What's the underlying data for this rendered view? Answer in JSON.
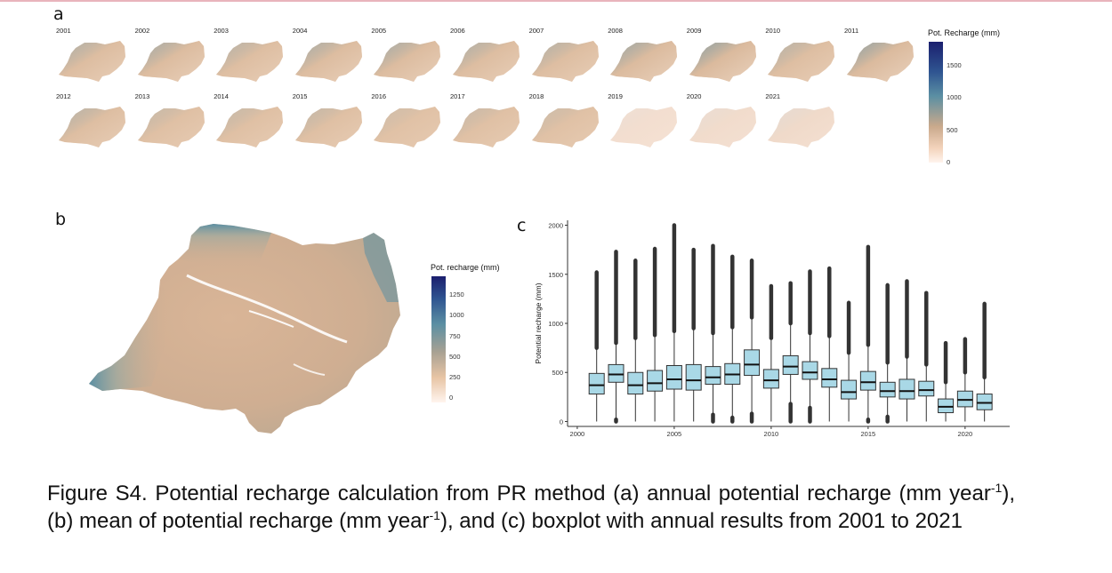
{
  "figure": {
    "panel_a": {
      "letter": "a",
      "years_row1": [
        "2001",
        "2002",
        "2003",
        "2004",
        "2005",
        "2006",
        "2007",
        "2008",
        "2009",
        "2010",
        "2011"
      ],
      "years_row2": [
        "2012",
        "2013",
        "2014",
        "2015",
        "2016",
        "2017",
        "2018",
        "2019",
        "2020",
        "2021"
      ],
      "year_intensity": [
        0.45,
        0.5,
        0.4,
        0.48,
        0.5,
        0.45,
        0.42,
        0.55,
        0.62,
        0.4,
        0.6,
        0.4,
        0.3,
        0.3,
        0.32,
        0.22,
        0.28,
        0.25,
        0.08,
        0.12,
        0.15
      ],
      "legend": {
        "title": "Pot. Recharge (mm)",
        "ticks": [
          "1500",
          "1000",
          "500",
          "0"
        ]
      }
    },
    "panel_b": {
      "letter": "b",
      "legend": {
        "title": "Pot. recharge (mm)",
        "ticks": [
          "1250",
          "1000",
          "750",
          "500",
          "250",
          "0"
        ]
      }
    },
    "panel_c": {
      "letter": "c"
    },
    "colors": {
      "high": "#1b1f6e",
      "mid": "#5b8fa3",
      "low": "#e8c4a2",
      "zero": "#fff4ee",
      "box_fill": "#a9d8e6"
    }
  },
  "chart_data": {
    "type": "boxplot",
    "ylabel": "Potential recharge (mm)",
    "xlabel": "",
    "xlim": [
      1999.5,
      2022.3
    ],
    "ylim": [
      -50,
      2050
    ],
    "x_ticks": [
      2000,
      2005,
      2010,
      2015,
      2020
    ],
    "y_ticks": [
      0,
      500,
      1000,
      1500,
      2000
    ],
    "series": [
      {
        "year": 2001,
        "min": 0,
        "q1": 280,
        "median": 370,
        "q3": 490,
        "max": 750,
        "outlier_high": 1520,
        "outlier_low": null
      },
      {
        "year": 2002,
        "min": 20,
        "q1": 400,
        "median": 480,
        "q3": 580,
        "max": 800,
        "outlier_high": 1730,
        "outlier_low": 0
      },
      {
        "year": 2003,
        "min": 0,
        "q1": 280,
        "median": 370,
        "q3": 500,
        "max": 850,
        "outlier_high": 1640,
        "outlier_low": null
      },
      {
        "year": 2004,
        "min": 0,
        "q1": 310,
        "median": 390,
        "q3": 520,
        "max": 880,
        "outlier_high": 1760,
        "outlier_low": null
      },
      {
        "year": 2005,
        "min": 0,
        "q1": 330,
        "median": 430,
        "q3": 570,
        "max": 920,
        "outlier_high": 2000,
        "outlier_low": null
      },
      {
        "year": 2006,
        "min": 0,
        "q1": 320,
        "median": 420,
        "q3": 580,
        "max": 950,
        "outlier_high": 1750,
        "outlier_low": null
      },
      {
        "year": 2007,
        "min": 70,
        "q1": 380,
        "median": 450,
        "q3": 560,
        "max": 900,
        "outlier_high": 1790,
        "outlier_low": 0
      },
      {
        "year": 2008,
        "min": 40,
        "q1": 380,
        "median": 480,
        "q3": 590,
        "max": 960,
        "outlier_high": 1680,
        "outlier_low": 0
      },
      {
        "year": 2009,
        "min": 80,
        "q1": 470,
        "median": 580,
        "q3": 730,
        "max": 1060,
        "outlier_high": 1640,
        "outlier_low": 0
      },
      {
        "year": 2010,
        "min": 0,
        "q1": 340,
        "median": 420,
        "q3": 530,
        "max": 850,
        "outlier_high": 1380,
        "outlier_low": null
      },
      {
        "year": 2011,
        "min": 180,
        "q1": 480,
        "median": 560,
        "q3": 670,
        "max": 1000,
        "outlier_high": 1410,
        "outlier_low": 0
      },
      {
        "year": 2012,
        "min": 140,
        "q1": 430,
        "median": 500,
        "q3": 610,
        "max": 900,
        "outlier_high": 1530,
        "outlier_low": 0
      },
      {
        "year": 2013,
        "min": 0,
        "q1": 350,
        "median": 430,
        "q3": 540,
        "max": 870,
        "outlier_high": 1560,
        "outlier_low": null
      },
      {
        "year": 2014,
        "min": 0,
        "q1": 230,
        "median": 300,
        "q3": 420,
        "max": 700,
        "outlier_high": 1210,
        "outlier_low": null
      },
      {
        "year": 2015,
        "min": 20,
        "q1": 320,
        "median": 400,
        "q3": 510,
        "max": 780,
        "outlier_high": 1780,
        "outlier_low": 0
      },
      {
        "year": 2016,
        "min": 50,
        "q1": 250,
        "median": 310,
        "q3": 400,
        "max": 600,
        "outlier_high": 1390,
        "outlier_low": 0
      },
      {
        "year": 2017,
        "min": 0,
        "q1": 230,
        "median": 310,
        "q3": 430,
        "max": 660,
        "outlier_high": 1430,
        "outlier_low": null
      },
      {
        "year": 2018,
        "min": 0,
        "q1": 260,
        "median": 320,
        "q3": 410,
        "max": 580,
        "outlier_high": 1310,
        "outlier_low": null
      },
      {
        "year": 2019,
        "min": 0,
        "q1": 90,
        "median": 150,
        "q3": 230,
        "max": 400,
        "outlier_high": 800,
        "outlier_low": null
      },
      {
        "year": 2020,
        "min": 0,
        "q1": 150,
        "median": 220,
        "q3": 310,
        "max": 500,
        "outlier_high": 840,
        "outlier_low": null
      },
      {
        "year": 2021,
        "min": 0,
        "q1": 120,
        "median": 190,
        "q3": 280,
        "max": 450,
        "outlier_high": 1200,
        "outlier_low": null
      }
    ]
  },
  "caption": {
    "part1": "Figure S4. Potential recharge calculation from PR method (a) annual potential recharge (mm year",
    "sup1": "-1",
    "part2": "), (b) mean of potential recharge (mm year",
    "sup2": "-1",
    "part3": "), and (c) boxplot with annual results from 2001 to 2021"
  }
}
